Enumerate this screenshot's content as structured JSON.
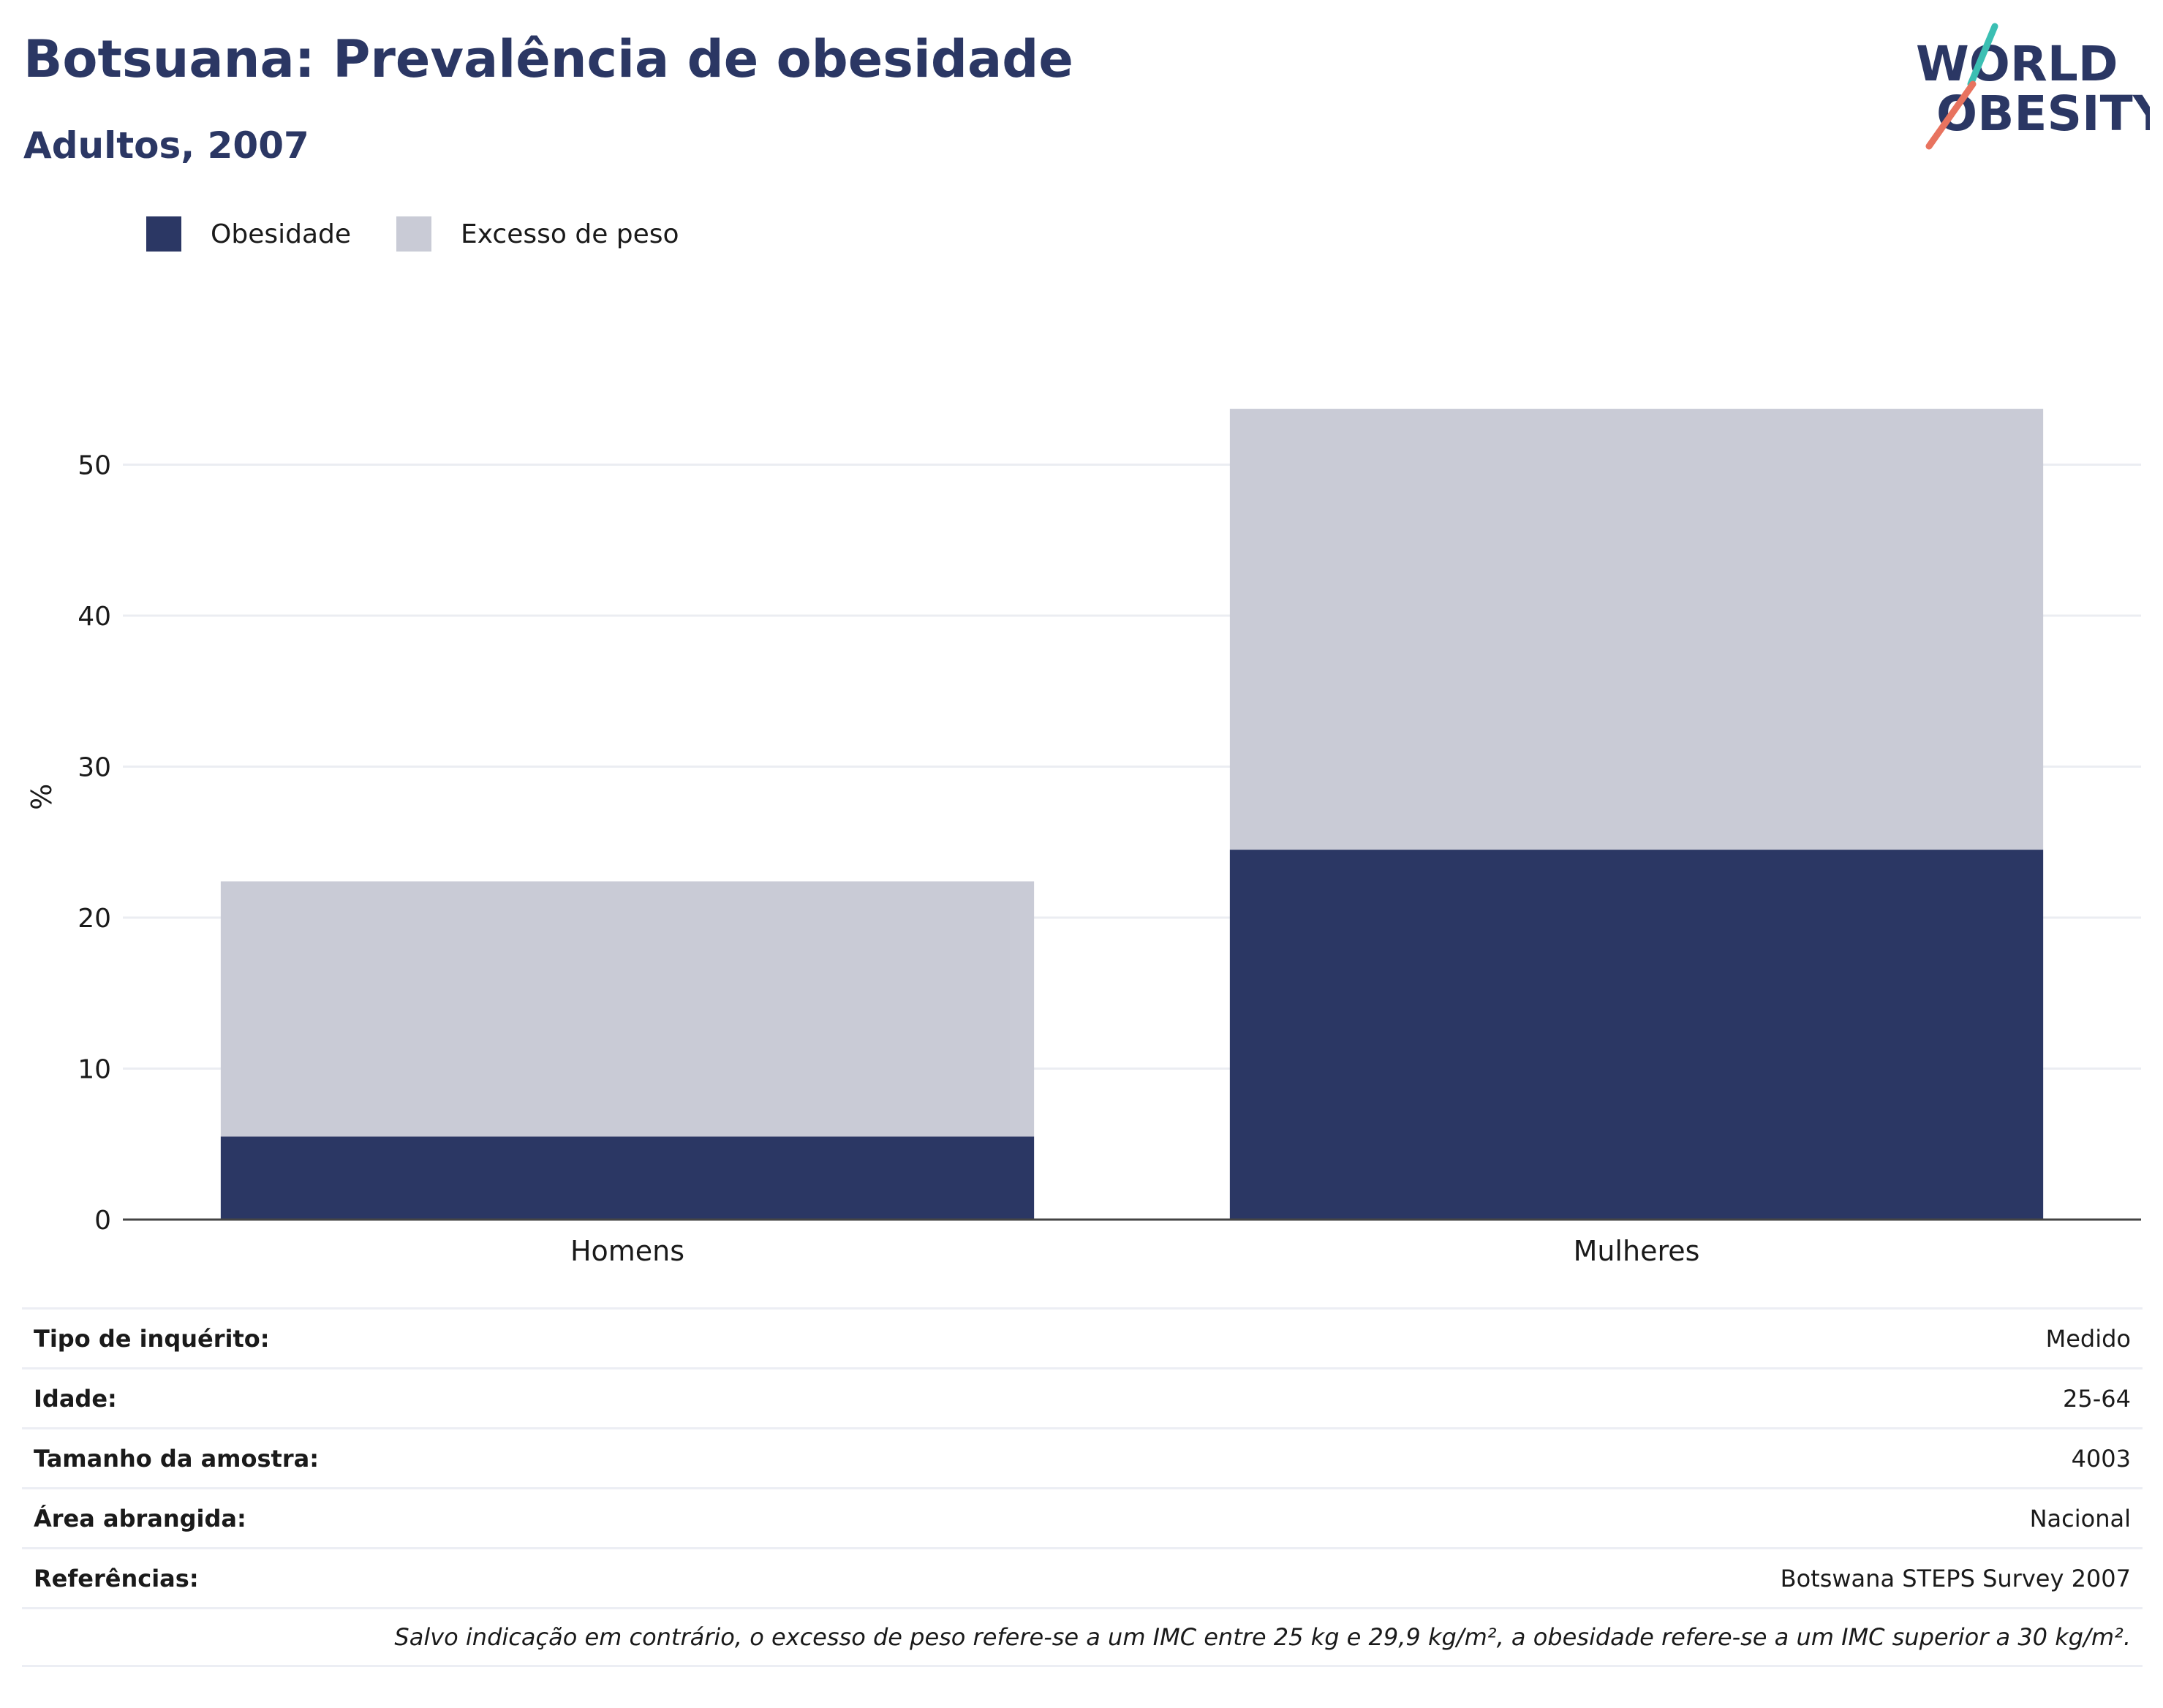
{
  "header": {
    "title": "Botsuana: Prevalência de obesidade",
    "subtitle": "Adultos, 2007"
  },
  "logo": {
    "line1": "WORLD",
    "line2": "OBESITY",
    "colors": {
      "text": "#2b3764",
      "accent_teal": "#3bbfb3",
      "accent_coral": "#e8735f"
    }
  },
  "colors": {
    "obesity": "#2b3764",
    "overweight": "#c9cbd6",
    "grid": "#ebedf2",
    "axis": "#444444"
  },
  "chart_data": {
    "type": "bar",
    "stacked": true,
    "categories": [
      "Homens",
      "Mulheres"
    ],
    "series": [
      {
        "name": "Obesidade",
        "values": [
          5.5,
          24.5
        ]
      },
      {
        "name": "Excesso de peso",
        "values": [
          16.9,
          29.2
        ]
      }
    ],
    "ylabel": "%",
    "ylim": [
      0,
      55
    ],
    "yticks": [
      0,
      10,
      20,
      30,
      40,
      50
    ],
    "grid": true,
    "legend_position": "top-left"
  },
  "info": [
    {
      "label": "Tipo de inquérito:",
      "value": "Medido"
    },
    {
      "label": "Idade:",
      "value": "25-64"
    },
    {
      "label": "Tamanho da amostra:",
      "value": "4003"
    },
    {
      "label": "Área abrangida:",
      "value": "Nacional"
    },
    {
      "label": "Referências:",
      "value": "Botswana STEPS Survey 2007"
    }
  ],
  "note": "Salvo indicação em contrário, o excesso de peso refere-se a um IMC entre 25 kg e 29,9 kg/m², a obesidade refere-se a um IMC superior a 30 kg/m²."
}
